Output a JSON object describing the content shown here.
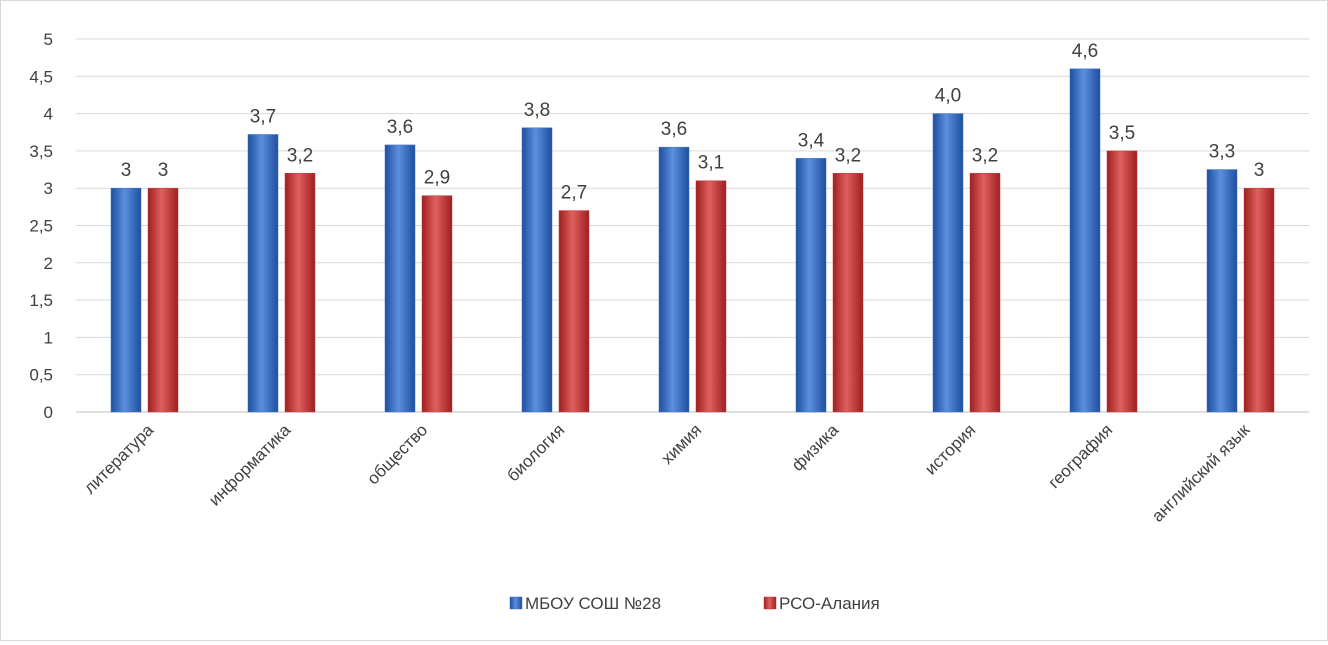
{
  "chart_data": {
    "type": "bar",
    "title": "",
    "xlabel": "",
    "ylabel": "",
    "ylim": [
      0,
      5
    ],
    "yticks": [
      "0",
      "0,5",
      "1",
      "1,5",
      "2",
      "2,5",
      "3",
      "3,5",
      "4",
      "4,5",
      "5"
    ],
    "grid": true,
    "legend_position": "bottom",
    "categories": [
      "литература",
      "информатика",
      "общество",
      "биология",
      "химия",
      "физика",
      "история",
      "география",
      "английский язык"
    ],
    "series": [
      {
        "name": "МБОУ СОШ №28",
        "color": "#3a6fc4",
        "values": [
          3,
          3.72,
          3.58,
          3.81,
          3.55,
          3.4,
          4.0,
          4.6,
          3.25
        ],
        "labels": [
          "3",
          "3,7",
          "3,6",
          "3,8",
          "3,6",
          "3,4",
          "4,0",
          "4,6",
          "3,3"
        ]
      },
      {
        "name": "РСО-Алания",
        "color": "#c43a3a",
        "values": [
          3,
          3.2,
          2.9,
          2.7,
          3.1,
          3.2,
          3.2,
          3.5,
          3
        ],
        "labels": [
          "3",
          "3,2",
          "2,9",
          "2,7",
          "3,1",
          "3,2",
          "3,2",
          "3,5",
          "3"
        ]
      }
    ]
  }
}
